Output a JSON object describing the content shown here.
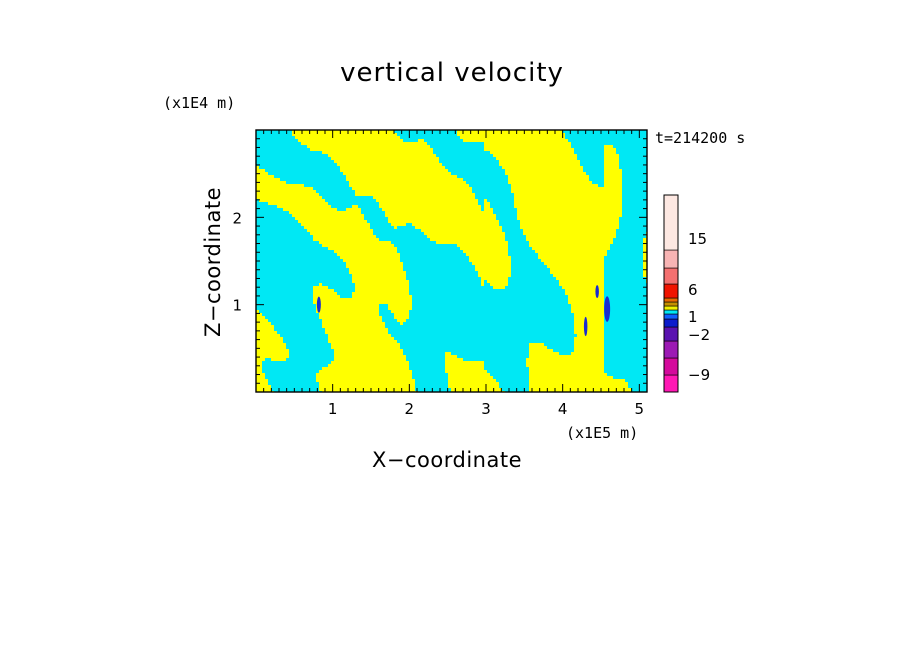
{
  "chart_data": {
    "type": "heatmap",
    "title": "vertical velocity",
    "xlabel": "X−coordinate",
    "ylabel": "Z−coordinate",
    "x_unit_label": "(x1E5 m)",
    "y_unit_label": "(x1E4 m)",
    "time_label": "t=214200 s",
    "xlim": [
      0.0,
      5.1
    ],
    "ylim": [
      0.0,
      3.0
    ],
    "x_ticks": [
      1,
      2,
      3,
      4,
      5
    ],
    "y_ticks": [
      1,
      2
    ],
    "colorbar": {
      "tick_labels": [
        "15",
        "6",
        "1",
        "−2",
        "−9"
      ],
      "tick_values": [
        15,
        6,
        1,
        -2,
        -9
      ],
      "levels": [
        {
          "color": "#ff18b4"
        },
        {
          "color": "#d40a9c"
        },
        {
          "color": "#9c1ab4"
        },
        {
          "color": "#5a12b0"
        },
        {
          "color": "#0c1ccc"
        },
        {
          "color": "#1060ff"
        },
        {
          "color": "#00e8f4"
        },
        {
          "color": "#f0f000"
        },
        {
          "color": "#c49000"
        },
        {
          "color": "#e86a00"
        },
        {
          "color": "#f01400"
        },
        {
          "color": "#f47070"
        },
        {
          "color": "#f8b4b4"
        },
        {
          "color": "#fde8e2"
        }
      ]
    },
    "dominant_colors": {
      "positive": "#ffff00",
      "negative": "#00e8f4"
    },
    "description_regions": "alternating bands of weak positive (yellow) and weak negative (cyan) vertical velocity"
  }
}
